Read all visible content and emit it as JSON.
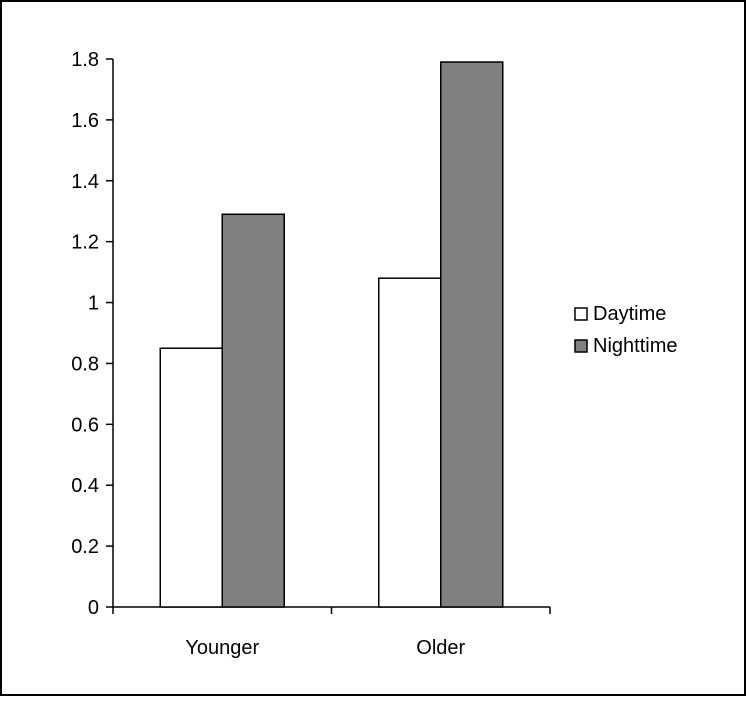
{
  "chart_data": {
    "type": "bar",
    "categories": [
      "Younger",
      "Older"
    ],
    "series": [
      {
        "name": "Daytime",
        "values": [
          0.85,
          1.08
        ]
      },
      {
        "name": "Nighttime",
        "values": [
          1.29,
          1.79
        ]
      }
    ],
    "title": "",
    "xlabel": "",
    "ylabel": "",
    "ylim": [
      0,
      1.8
    ],
    "yticks": [
      "0",
      "0.2",
      "0.4",
      "0.6",
      "0.8",
      "1",
      "1.2",
      "1.4",
      "1.6",
      "1.8"
    ],
    "grid": false,
    "legend": "right",
    "colors": {
      "Daytime": "#ffffff",
      "Nighttime": "#808080",
      "stroke": "#000000",
      "background": "#ffffff"
    }
  }
}
